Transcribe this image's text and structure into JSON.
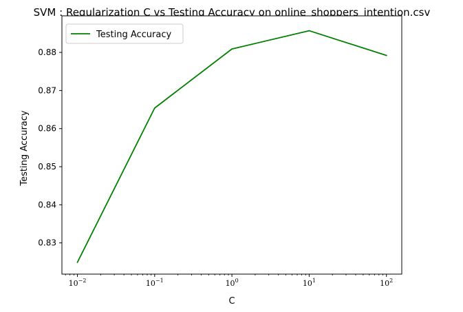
{
  "chart_data": {
    "type": "line",
    "title": "SVM : Regularization C vs Testing Accuracy on online_shoppers_intention.csv",
    "xlabel": "C",
    "ylabel": "Testing Accuracy",
    "xscale": "log",
    "xlim": [
      0.0063,
      158
    ],
    "ylim": [
      0.8218,
      0.8896
    ],
    "x_ticks": [
      {
        "value": 0.01,
        "base": "10",
        "exp": "−2"
      },
      {
        "value": 0.1,
        "base": "10",
        "exp": "−1"
      },
      {
        "value": 1,
        "base": "10",
        "exp": "0"
      },
      {
        "value": 10,
        "base": "10",
        "exp": "1"
      },
      {
        "value": 100,
        "base": "10",
        "exp": "2"
      }
    ],
    "y_ticks": [
      {
        "value": 0.83,
        "label": "0.83"
      },
      {
        "value": 0.84,
        "label": "0.84"
      },
      {
        "value": 0.85,
        "label": "0.85"
      },
      {
        "value": 0.86,
        "label": "0.86"
      },
      {
        "value": 0.87,
        "label": "0.87"
      },
      {
        "value": 0.88,
        "label": "0.88"
      }
    ],
    "grid": false,
    "legend_position": "top-left",
    "series": [
      {
        "name": "Testing Accuracy",
        "color": "#008000",
        "x": [
          0.01,
          0.1,
          1,
          10,
          100
        ],
        "y": [
          0.8249,
          0.8654,
          0.8809,
          0.8857,
          0.8792
        ]
      }
    ]
  }
}
